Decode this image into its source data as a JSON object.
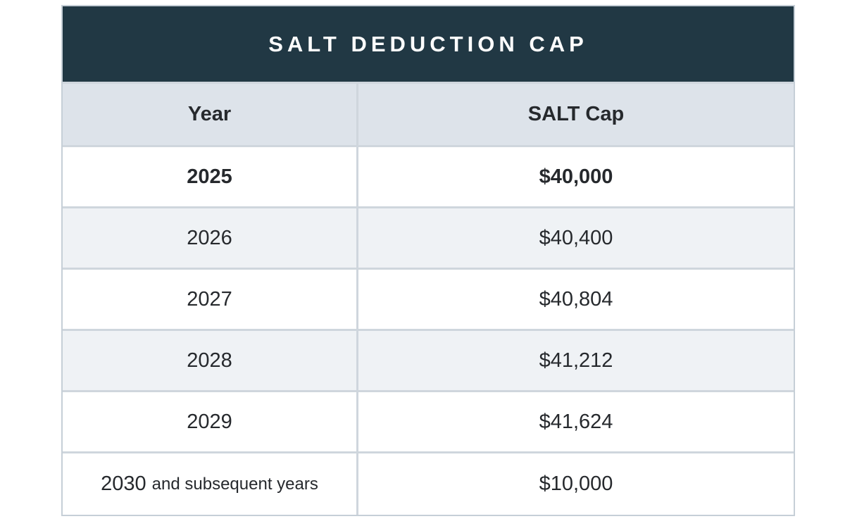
{
  "table": {
    "title": "SALT DEDUCTION CAP",
    "columns": {
      "year_label": "Year",
      "cap_label": "SALT Cap"
    },
    "rows": [
      {
        "year": "2025",
        "year_suffix": "",
        "cap": "$40,000"
      },
      {
        "year": "2026",
        "year_suffix": "",
        "cap": "$40,400"
      },
      {
        "year": "2027",
        "year_suffix": "",
        "cap": "$40,804"
      },
      {
        "year": "2028",
        "year_suffix": "",
        "cap": "$41,212"
      },
      {
        "year": "2029",
        "year_suffix": "",
        "cap": "$41,624"
      },
      {
        "year": "2030",
        "year_suffix": "and subsequent years",
        "cap": "$10,000"
      }
    ],
    "colors": {
      "title_bg": "#213844",
      "title_text": "#ffffff",
      "header_bg": "#dde3ea",
      "row_alt_bg": "#eff2f5",
      "divider": "#cfd6dd",
      "text": "#26292d"
    }
  }
}
